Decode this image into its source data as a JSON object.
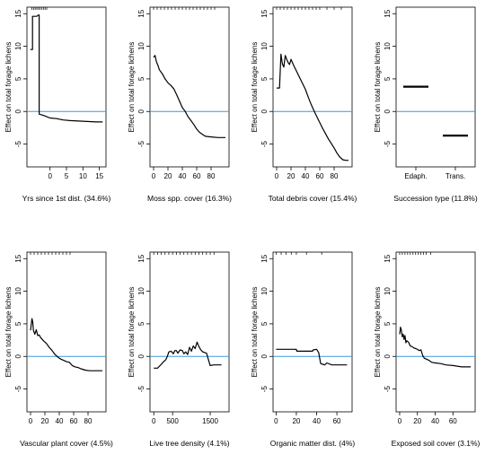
{
  "figure": {
    "rug_color": "#000000",
    "zero_line_color": "#3a9ad9",
    "curve_color": "#000000"
  },
  "chart_data": [
    {
      "type": "line",
      "xlabel": "Yrs since 1st dist. (34.6%)",
      "ylabel": "Effect on total forage lichens",
      "xlim": [
        -7,
        17
      ],
      "ylim": [
        -8.5,
        16
      ],
      "xticks": [
        0,
        5,
        10,
        15
      ],
      "xticklabels": [
        "0",
        "5",
        "10",
        "15"
      ],
      "yticks": [
        -5,
        0,
        5,
        10,
        15
      ],
      "yticklabels": [
        "-5",
        "0",
        "5",
        "10",
        "15"
      ],
      "reference_line_y": 0,
      "rug_x": [
        -5.5,
        -5,
        -4.5,
        -4,
        -3.5,
        -3,
        -2.5,
        -2,
        -1.5,
        -1
      ],
      "x": [
        -6,
        -5.3,
        -5.3,
        -4,
        -3.5,
        -3.3,
        -3.3,
        -2,
        -1,
        0,
        2,
        4,
        6,
        10,
        14,
        16
      ],
      "y": [
        9.5,
        9.5,
        14.6,
        14.6,
        14.8,
        14.8,
        -0.4,
        -0.6,
        -0.8,
        -1.0,
        -1.1,
        -1.3,
        -1.4,
        -1.5,
        -1.6,
        -1.6
      ]
    },
    {
      "type": "line",
      "xlabel": "Moss spp. cover (16.3%)",
      "ylabel": "Effect on total forage lichens",
      "xlim": [
        -5,
        105
      ],
      "ylim": [
        -8.5,
        16
      ],
      "xticks": [
        0,
        20,
        40,
        60,
        80
      ],
      "xticklabels": [
        "0",
        "20",
        "40",
        "60",
        "80"
      ],
      "yticks": [
        -5,
        0,
        5,
        10,
        15
      ],
      "yticklabels": [
        "-5",
        "0",
        "5",
        "10",
        "15"
      ],
      "reference_line_y": 0,
      "rug_x": [
        0,
        5,
        10,
        15,
        20,
        25,
        30,
        35,
        40,
        45,
        50,
        55,
        60,
        65,
        70,
        75,
        80,
        85
      ],
      "x": [
        0,
        2,
        4,
        6,
        8,
        12,
        16,
        20,
        24,
        28,
        32,
        36,
        40,
        44,
        48,
        52,
        56,
        60,
        64,
        68,
        72,
        80,
        90,
        100
      ],
      "y": [
        8.3,
        8.6,
        7.6,
        7.1,
        6.4,
        5.8,
        5.0,
        4.4,
        4.0,
        3.5,
        2.6,
        1.6,
        0.6,
        0.0,
        -0.8,
        -1.4,
        -2.0,
        -2.7,
        -3.2,
        -3.5,
        -3.8,
        -3.9,
        -4.0,
        -4.0
      ]
    },
    {
      "type": "line",
      "xlabel": "Total debris cover (15.4%)",
      "ylabel": "Effect on total forage lichens",
      "xlim": [
        -5,
        105
      ],
      "ylim": [
        -8.5,
        16
      ],
      "xticks": [
        0,
        20,
        40,
        60,
        80
      ],
      "xticklabels": [
        "0",
        "20",
        "40",
        "60",
        "80"
      ],
      "yticks": [
        -5,
        0,
        5,
        10,
        15
      ],
      "yticklabels": [
        "-5",
        "0",
        "5",
        "10",
        "15"
      ],
      "reference_line_y": 0,
      "rug_x": [
        0,
        5,
        10,
        15,
        20,
        25,
        30,
        35,
        40,
        45,
        50,
        55,
        60,
        70,
        80,
        90
      ],
      "x": [
        0,
        4,
        6,
        8,
        10,
        12,
        14,
        16,
        18,
        20,
        24,
        28,
        32,
        36,
        40,
        44,
        48,
        52,
        56,
        60,
        64,
        68,
        72,
        76,
        80,
        84,
        88,
        92,
        96,
        100
      ],
      "y": [
        3.6,
        3.6,
        8.8,
        7.3,
        6.8,
        8.6,
        8.0,
        7.5,
        7.2,
        8.0,
        7.0,
        6.1,
        5.2,
        4.3,
        3.4,
        2.2,
        1.1,
        0.1,
        -0.8,
        -1.7,
        -2.6,
        -3.4,
        -4.2,
        -4.9,
        -5.6,
        -6.4,
        -7.0,
        -7.4,
        -7.5,
        -7.5
      ]
    },
    {
      "type": "bar",
      "xlabel": "Succession type (11.8%)",
      "ylabel": "Effect on total forage lichens",
      "categories": [
        "Edaph.",
        "Trans."
      ],
      "values": [
        3.8,
        -3.7
      ],
      "ylim": [
        -8.5,
        16
      ],
      "yticks": [
        -5,
        0,
        5,
        10,
        15
      ],
      "yticklabels": [
        "-5",
        "0",
        "5",
        "10",
        "15"
      ],
      "reference_line_y": 0
    },
    {
      "type": "line",
      "xlabel": "Vascular plant cover (4.5%)",
      "ylabel": "Effect on total forage lichens",
      "xlim": [
        -5,
        105
      ],
      "ylim": [
        -8.5,
        16
      ],
      "xticks": [
        0,
        20,
        40,
        60,
        80
      ],
      "xticklabels": [
        "0",
        "20",
        "40",
        "60",
        "80"
      ],
      "yticks": [
        -5,
        0,
        5,
        10,
        15
      ],
      "yticklabels": [
        "-5",
        "0",
        "5",
        "10",
        "15"
      ],
      "reference_line_y": 0,
      "rug_x": [
        0,
        5,
        10,
        15,
        20,
        25,
        30,
        35,
        40,
        45,
        50,
        55
      ],
      "x": [
        0,
        2,
        3,
        4,
        6,
        8,
        10,
        12,
        14,
        18,
        22,
        26,
        30,
        34,
        38,
        42,
        46,
        50,
        54,
        58,
        62,
        66,
        70,
        76,
        82,
        90,
        100
      ],
      "y": [
        4.0,
        5.8,
        5.3,
        4.0,
        3.4,
        4.1,
        3.2,
        3.3,
        2.9,
        2.4,
        2.0,
        1.4,
        0.9,
        0.3,
        -0.1,
        -0.4,
        -0.6,
        -0.8,
        -0.9,
        -1.4,
        -1.6,
        -1.7,
        -1.9,
        -2.1,
        -2.2,
        -2.2,
        -2.2
      ]
    },
    {
      "type": "line",
      "xlabel": "Live tree density (4.1%)",
      "ylabel": "Effect on total forage lichens",
      "xlim": [
        -100,
        2000
      ],
      "ylim": [
        -8.5,
        16
      ],
      "xticks": [
        0,
        500,
        1500
      ],
      "xticklabels": [
        "0",
        "500",
        "1500"
      ],
      "yticks": [
        -5,
        0,
        5,
        10,
        15
      ],
      "yticklabels": [
        "-5",
        "0",
        "5",
        "10",
        "15"
      ],
      "reference_line_y": 0,
      "rug_x": [
        0,
        100,
        200,
        300,
        400,
        500,
        600,
        700,
        800,
        900,
        1000,
        1100,
        1200,
        1300,
        1400,
        1500,
        1600
      ],
      "x": [
        0,
        100,
        200,
        260,
        320,
        360,
        400,
        460,
        520,
        560,
        600,
        640,
        700,
        760,
        800,
        850,
        900,
        950,
        1000,
        1050,
        1100,
        1150,
        1200,
        1250,
        1300,
        1400,
        1500,
        1600,
        1800
      ],
      "y": [
        -1.8,
        -1.8,
        -1.2,
        -0.8,
        -0.5,
        0.0,
        0.7,
        0.8,
        0.4,
        0.9,
        0.9,
        0.5,
        1.0,
        0.9,
        0.4,
        0.7,
        0.3,
        1.4,
        0.8,
        1.6,
        1.2,
        2.2,
        1.5,
        1.0,
        0.7,
        0.5,
        -1.4,
        -1.3,
        -1.3
      ]
    },
    {
      "type": "line",
      "xlabel": "Organic matter dist. (4%)",
      "ylabel": "Effect on total forage lichens",
      "xlim": [
        -3,
        75
      ],
      "ylim": [
        -8.5,
        16
      ],
      "xticks": [
        0,
        20,
        40,
        60
      ],
      "xticklabels": [
        "0",
        "20",
        "40",
        "60"
      ],
      "yticks": [
        -5,
        0,
        5,
        10,
        15
      ],
      "yticklabels": [
        "-5",
        "0",
        "5",
        "10",
        "15"
      ],
      "reference_line_y": 0,
      "rug_x": [
        0,
        5,
        10,
        15,
        20,
        30,
        45
      ],
      "x": [
        0,
        10,
        20,
        20.5,
        36,
        36.5,
        40,
        42,
        44,
        46,
        48,
        50,
        55,
        60,
        70
      ],
      "y": [
        1.1,
        1.1,
        1.1,
        0.8,
        0.8,
        1.0,
        1.1,
        0.6,
        -1.1,
        -1.2,
        -1.3,
        -1.0,
        -1.3,
        -1.3,
        -1.3
      ]
    },
    {
      "type": "line",
      "xlabel": "Exposed soil cover (3.1%)",
      "ylabel": "Effect on total forage lichens",
      "xlim": [
        -4,
        85
      ],
      "ylim": [
        -8.5,
        16
      ],
      "xticks": [
        0,
        20,
        40,
        60
      ],
      "xticklabels": [
        "0",
        "20",
        "40",
        "60"
      ],
      "yticks": [
        -5,
        0,
        5,
        10,
        15
      ],
      "yticklabels": [
        "-5",
        "0",
        "5",
        "10",
        "15"
      ],
      "reference_line_y": 0,
      "rug_x": [
        0,
        3,
        6,
        9,
        12,
        15,
        18,
        21,
        24,
        27,
        30,
        35
      ],
      "x": [
        0,
        1,
        2,
        3,
        4,
        5,
        6,
        7,
        8,
        10,
        12,
        14,
        16,
        18,
        20,
        22,
        24,
        26,
        28,
        30,
        33,
        36,
        40,
        46,
        52,
        60,
        70,
        80
      ],
      "y": [
        3.4,
        4.5,
        4.0,
        3.0,
        3.4,
        2.6,
        3.2,
        2.1,
        2.4,
        2.2,
        1.6,
        1.5,
        1.3,
        1.2,
        1.1,
        0.9,
        1.0,
        0.1,
        -0.3,
        -0.4,
        -0.6,
        -0.9,
        -1.0,
        -1.1,
        -1.3,
        -1.4,
        -1.6,
        -1.6
      ]
    }
  ]
}
